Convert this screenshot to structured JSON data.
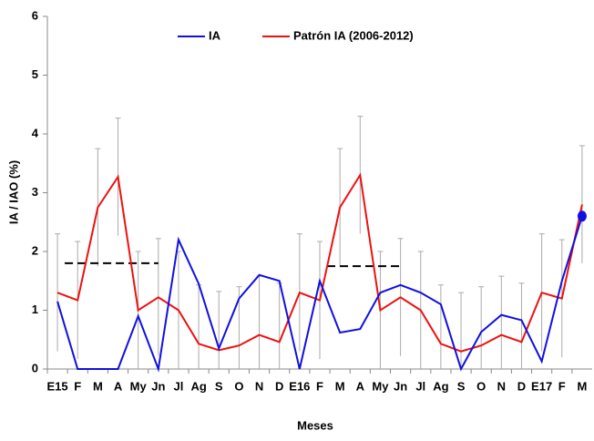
{
  "chart_data": {
    "type": "line",
    "y_label": "IA / IAO (%)",
    "x_label": "Meses",
    "categories": [
      "E15",
      "F",
      "M",
      "A",
      "My",
      "Jn",
      "Jl",
      "Ag",
      "S",
      "O",
      "N",
      "D",
      "E16",
      "F",
      "M",
      "A",
      "My",
      "Jn",
      "Jl",
      "Ag",
      "S",
      "O",
      "N",
      "D",
      "E17",
      "F",
      "M"
    ],
    "series": [
      {
        "name": "IA",
        "color": "#1010e0",
        "values": [
          1.15,
          0,
          0,
          0,
          0.9,
          0,
          2.2,
          1.45,
          0.35,
          1.2,
          1.6,
          1.5,
          0,
          1.5,
          0.62,
          0.68,
          1.3,
          1.43,
          1.3,
          1.1,
          0,
          0.63,
          0.92,
          0.83,
          0.13,
          1.5,
          2.6
        ]
      },
      {
        "name": "Patrón IA (2006-2012)",
        "color": "#ee1010",
        "values": [
          1.3,
          1.17,
          2.75,
          3.27,
          1.0,
          1.22,
          1.0,
          0.43,
          0.32,
          0.4,
          0.58,
          0.46,
          1.3,
          1.17,
          2.75,
          3.3,
          1.0,
          1.22,
          1.0,
          0.43,
          0.3,
          0.4,
          0.58,
          0.46,
          1.3,
          1.2,
          2.8
        ],
        "errors": [
          1,
          1,
          1,
          1,
          1,
          1,
          1,
          1,
          1,
          1,
          1,
          1,
          1,
          1,
          1,
          1,
          1,
          1,
          1,
          1,
          1,
          1,
          1,
          1,
          1,
          1,
          1
        ]
      }
    ],
    "reference_lines": [
      {
        "value": 1.8,
        "start": 0,
        "end": 5
      },
      {
        "value": 1.75,
        "start": 13,
        "end": 17
      }
    ],
    "ylim": [
      0,
      6
    ],
    "yticks": [
      0,
      1,
      2,
      3,
      4,
      5,
      6
    ],
    "legend": "top"
  }
}
